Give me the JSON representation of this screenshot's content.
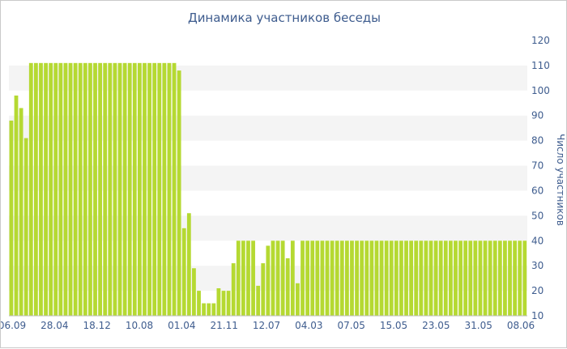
{
  "chart_data": {
    "type": "bar",
    "title": "Динамика участников беседы",
    "ylabel": "Число участников",
    "xlabel": "",
    "ylim": [
      10,
      120
    ],
    "yticks": [
      10,
      20,
      30,
      40,
      50,
      60,
      70,
      80,
      90,
      100,
      110,
      120
    ],
    "x_tick_labels": [
      "06.09",
      "28.04",
      "18.12",
      "10.08",
      "01.04",
      "21.11",
      "12.07",
      "04.03",
      "07.05",
      "15.05",
      "23.05",
      "31.05",
      "08.06"
    ],
    "grid": "alternating horizontal bands",
    "colors": {
      "bar": "#b5d932",
      "band": "#f4f4f4",
      "text": "#3e5c8e"
    },
    "values": [
      88,
      98,
      93,
      81,
      111,
      111,
      111,
      111,
      111,
      111,
      111,
      111,
      111,
      111,
      111,
      111,
      111,
      111,
      111,
      111,
      111,
      111,
      111,
      111,
      111,
      111,
      111,
      111,
      111,
      111,
      111,
      111,
      111,
      111,
      108,
      45,
      51,
      29,
      20,
      15,
      15,
      15,
      21,
      20,
      20,
      31,
      40,
      40,
      40,
      40,
      22,
      31,
      38,
      40,
      40,
      40,
      33,
      40,
      23,
      40,
      40,
      40,
      40,
      40,
      40,
      40,
      40,
      40,
      40,
      40,
      40,
      40,
      40,
      40,
      40,
      40,
      40,
      40,
      40,
      40,
      40,
      40,
      40,
      40,
      40,
      40,
      40,
      40,
      40,
      40,
      40,
      40,
      40,
      40,
      40,
      40,
      40,
      40,
      40,
      40,
      40,
      40,
      40,
      40,
      40
    ]
  }
}
